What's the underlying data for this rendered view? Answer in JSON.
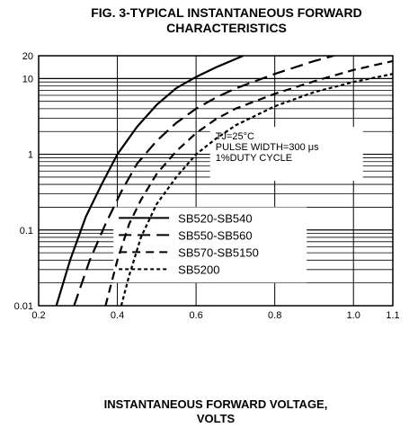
{
  "chart_data": {
    "type": "line",
    "title_line1": "FIG. 3-TYPICAL INSTANTANEOUS FORWARD",
    "title_line2": "CHARACTERISTICS",
    "xlabel_line1": "INSTANTANEOUS FORWARD VOLTAGE,",
    "xlabel_line2": "VOLTS",
    "ylabel": "",
    "x_scale": "linear",
    "y_scale": "log",
    "xlim": [
      0.2,
      1.1
    ],
    "ylim": [
      0.01,
      20
    ],
    "x_ticks": [
      {
        "value": 0.2,
        "label": "0.2"
      },
      {
        "value": 0.4,
        "label": "0.4"
      },
      {
        "value": 0.6,
        "label": "0.6"
      },
      {
        "value": 0.8,
        "label": "0.8"
      },
      {
        "value": 1.0,
        "label": "1.0"
      },
      {
        "value": 1.1,
        "label": "1.1"
      }
    ],
    "y_ticks": [
      {
        "value": 0.01,
        "label": "0.01"
      },
      {
        "value": 0.1,
        "label": "0.1"
      },
      {
        "value": 1,
        "label": "1"
      },
      {
        "value": 10,
        "label": "10"
      },
      {
        "value": 20,
        "label": "20"
      }
    ],
    "grid": true,
    "annotation": [
      "TJ=25°C",
      "PULSE WIDTH=300 μs",
      "1%DUTY CYCLE"
    ],
    "legend_position": "lower-right",
    "series": [
      {
        "name": "SB520-SB540",
        "dash": "solid",
        "x": [
          0.245,
          0.28,
          0.32,
          0.36,
          0.4,
          0.45,
          0.5,
          0.55,
          0.6,
          0.65,
          0.72
        ],
        "y": [
          0.01,
          0.04,
          0.15,
          0.4,
          1.0,
          2.3,
          4.5,
          7.5,
          10.5,
          14.0,
          20.0
        ]
      },
      {
        "name": "SB550-SB560",
        "dash": "long-dash",
        "x": [
          0.29,
          0.33,
          0.37,
          0.41,
          0.45,
          0.5,
          0.55,
          0.6,
          0.65,
          0.7,
          0.8,
          0.9,
          0.95
        ],
        "y": [
          0.01,
          0.04,
          0.12,
          0.32,
          0.75,
          1.5,
          2.6,
          4.0,
          5.6,
          7.4,
          11.5,
          17.0,
          20.0
        ]
      },
      {
        "name": "SB570-SB5150",
        "dash": "medium-dash",
        "x": [
          0.37,
          0.4,
          0.43,
          0.46,
          0.5,
          0.55,
          0.6,
          0.65,
          0.7,
          0.8,
          0.9,
          1.0,
          1.1
        ],
        "y": [
          0.01,
          0.04,
          0.12,
          0.25,
          0.55,
          1.1,
          1.9,
          2.9,
          4.0,
          6.3,
          9.2,
          13.0,
          17.0
        ]
      },
      {
        "name": "SB5200",
        "dash": "short-dash",
        "x": [
          0.41,
          0.43,
          0.46,
          0.5,
          0.55,
          0.6,
          0.65,
          0.7,
          0.8,
          0.9,
          1.0,
          1.1
        ],
        "y": [
          0.01,
          0.025,
          0.08,
          0.22,
          0.5,
          1.0,
          1.6,
          2.4,
          4.3,
          6.6,
          9.0,
          11.5
        ]
      }
    ]
  }
}
